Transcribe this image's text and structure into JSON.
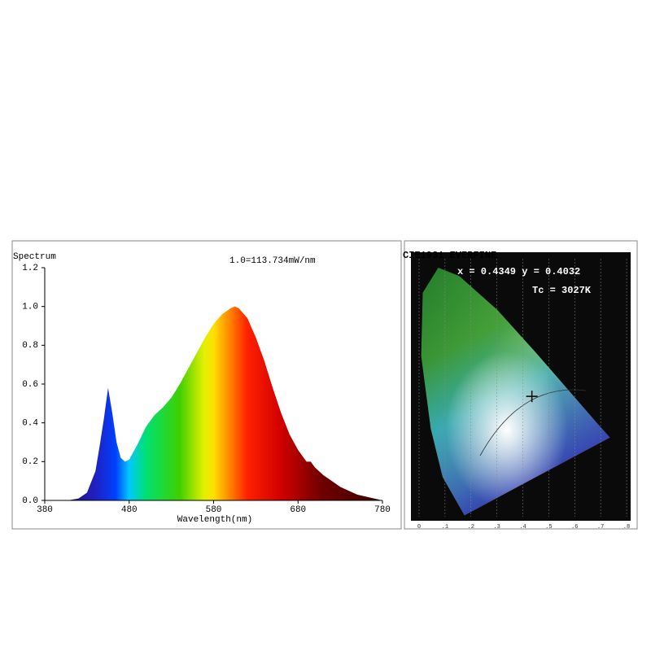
{
  "chart_data": [
    {
      "type": "area",
      "title": "Spectrum",
      "annotation": "1.0=113.734mW/nm",
      "x_label": "Wavelength(nm)",
      "x": [
        380,
        390,
        400,
        410,
        420,
        430,
        440,
        445,
        450,
        455,
        460,
        465,
        470,
        475,
        480,
        490,
        500,
        510,
        520,
        530,
        540,
        550,
        560,
        570,
        580,
        590,
        600,
        605,
        610,
        620,
        630,
        640,
        650,
        660,
        670,
        680,
        690,
        695,
        700,
        710,
        720,
        730,
        740,
        750,
        760,
        770,
        780
      ],
      "values": [
        0,
        0,
        0,
        0.002,
        0.01,
        0.04,
        0.15,
        0.28,
        0.42,
        0.58,
        0.45,
        0.3,
        0.22,
        0.2,
        0.21,
        0.29,
        0.38,
        0.44,
        0.48,
        0.53,
        0.6,
        0.68,
        0.76,
        0.84,
        0.91,
        0.96,
        0.99,
        1.0,
        0.99,
        0.94,
        0.84,
        0.72,
        0.58,
        0.45,
        0.34,
        0.26,
        0.2,
        0.2,
        0.17,
        0.13,
        0.1,
        0.07,
        0.05,
        0.03,
        0.02,
        0.01,
        0
      ],
      "xlim": [
        380,
        780
      ],
      "xticks": [
        380,
        480,
        580,
        680,
        780
      ],
      "ylim": [
        0,
        1.2
      ],
      "yticks": [
        {
          "value": 0,
          "label": "0.0"
        },
        0.2,
        0.4,
        0.6,
        0.8,
        {
          "value": 1,
          "label": "1.0"
        },
        1.2
      ]
    },
    {
      "type": "chromaticity",
      "title": "CIE1931 EVERFINE",
      "annotations": [
        "x = 0.4349 y = 0.4032",
        "Tc = 3027K"
      ],
      "x": [
        0.4349
      ],
      "y": [
        0.4032
      ],
      "xlim": [
        0,
        0.8
      ],
      "ylim": [
        0,
        0.9
      ],
      "xticks": [
        0,
        {
          "value": 0.1,
          "label": ".1"
        },
        {
          "value": 0.2,
          "label": ".2"
        },
        {
          "value": 0.3,
          "label": ".3"
        },
        {
          "value": 0.4,
          "label": ".4"
        },
        {
          "value": 0.5,
          "label": ".5"
        },
        {
          "value": 0.6,
          "label": ".6"
        },
        {
          "value": 0.7,
          "label": ".7"
        },
        {
          "value": 0.8,
          "label": ".8"
        }
      ]
    }
  ]
}
